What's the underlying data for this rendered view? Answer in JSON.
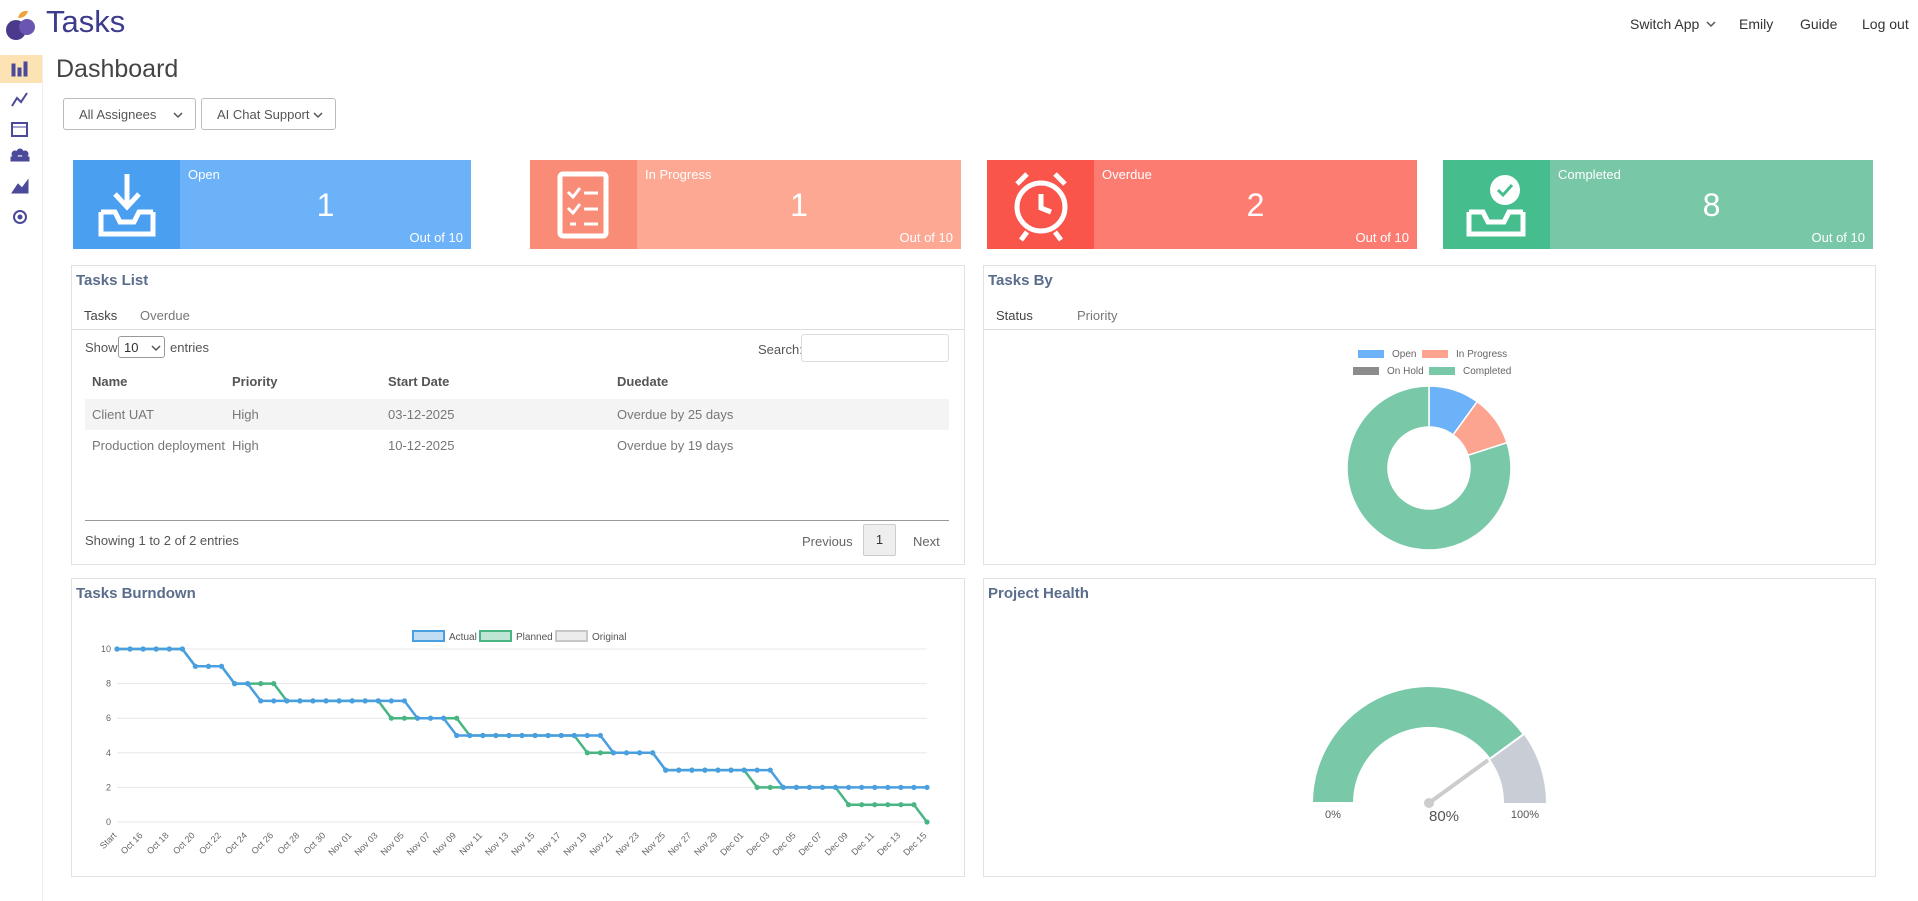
{
  "header": {
    "app_title": "Tasks",
    "nav": [
      "Switch App",
      "Emily",
      "Guide",
      "Log out"
    ]
  },
  "page_title": "Dashboard",
  "filters": [
    "All Assignees",
    "AI Chat Support"
  ],
  "cards": [
    {
      "label": "Open",
      "value": 1,
      "footer": "Out of 10"
    },
    {
      "label": "In Progress",
      "value": 1,
      "footer": "Out of 10"
    },
    {
      "label": "Overdue",
      "value": 2,
      "footer": "Out of 10"
    },
    {
      "label": "Completed",
      "value": 8,
      "footer": "Out of 10"
    }
  ],
  "tasks_list": {
    "title": "Tasks List",
    "tabs": [
      "Tasks",
      "Overdue"
    ],
    "show": "Show",
    "page_size": 10,
    "entries": "entries",
    "search": "Search:",
    "columns": [
      "Name",
      "Priority",
      "Start Date",
      "Duedate"
    ],
    "rows": [
      [
        "Client UAT",
        "High",
        "03-12-2025",
        "Overdue by 25 days"
      ],
      [
        "Production deployment",
        "High",
        "10-12-2025",
        "Overdue by 19 days"
      ]
    ],
    "info": "Showing 1 to 2 of 2 entries",
    "pagination": [
      "Previous",
      "1",
      "Next"
    ]
  },
  "tasks_by": {
    "title": "Tasks By",
    "tabs": [
      "Status",
      "Priority"
    ]
  },
  "burndown": {
    "title": "Tasks Burndown"
  },
  "project_health": {
    "title": "Project Health"
  },
  "chart_data": [
    {
      "type": "doughnut",
      "categories": [
        "Open",
        "In Progress",
        "On Hold",
        "Completed"
      ],
      "values": [
        1,
        1,
        0,
        8
      ],
      "colors": [
        "#6cb2f8",
        "#fca48f",
        "#8c8c8c",
        "#79c9a9"
      ]
    },
    {
      "type": "line",
      "categories": [
        "Start",
        null,
        "Oct 16",
        null,
        "Oct 18",
        null,
        "Oct 20",
        null,
        "Oct 22",
        null,
        "Oct 24",
        null,
        "Oct 26",
        null,
        "Oct 28",
        null,
        "Oct 30",
        null,
        "Nov 01",
        null,
        "Nov 03",
        null,
        "Nov 05",
        null,
        "Nov 07",
        null,
        "Nov 09",
        null,
        "Nov 11",
        null,
        "Nov 13",
        null,
        "Nov 15",
        null,
        "Nov 17",
        null,
        "Nov 19",
        null,
        "Nov 21",
        null,
        "Nov 23",
        null,
        "Nov 25",
        null,
        "Nov 27",
        null,
        "Nov 29",
        null,
        "Dec 01",
        null,
        "Dec 03",
        null,
        "Dec 05",
        null,
        "Dec 07",
        null,
        "Dec 09",
        null,
        "Dec 11",
        null,
        "Dec 13",
        null,
        "Dec 15"
      ],
      "series": [
        {
          "name": "Actual",
          "color": "#4a9fe0",
          "values": [
            10,
            10,
            10,
            10,
            10,
            10,
            9,
            9,
            9,
            8,
            8,
            7,
            7,
            7,
            7,
            7,
            7,
            7,
            7,
            7,
            7,
            7,
            7,
            6,
            6,
            6,
            5,
            5,
            5,
            5,
            5,
            5,
            5,
            5,
            5,
            5,
            5,
            5,
            4,
            4,
            4,
            4,
            3,
            3,
            3,
            3,
            3,
            3,
            3,
            3,
            3,
            2,
            2,
            2,
            2,
            2,
            2,
            2,
            2,
            2,
            2,
            2,
            2
          ]
        },
        {
          "name": "Planned",
          "color": "#48b583",
          "values": [
            10,
            10,
            10,
            10,
            10,
            10,
            9,
            9,
            9,
            8,
            8,
            8,
            8,
            7,
            7,
            7,
            7,
            7,
            7,
            7,
            7,
            6,
            6,
            6,
            6,
            6,
            6,
            5,
            5,
            5,
            5,
            5,
            5,
            5,
            5,
            5,
            4,
            4,
            4,
            4,
            4,
            4,
            3,
            3,
            3,
            3,
            3,
            3,
            3,
            2,
            2,
            2,
            2,
            2,
            2,
            2,
            1,
            1,
            1,
            1,
            1,
            1,
            0
          ]
        },
        {
          "name": "Original",
          "color": "#c8c8c8",
          "values": [
            null,
            null,
            null,
            null,
            null,
            null,
            null,
            null,
            null,
            null,
            null,
            null,
            null,
            null,
            null,
            null,
            null,
            null,
            null,
            null,
            null,
            null,
            null,
            null,
            null,
            null,
            null,
            null,
            null,
            null,
            null,
            null,
            null,
            null,
            null,
            null,
            null,
            null,
            null,
            null,
            null,
            null,
            null,
            null,
            null,
            null,
            null,
            null,
            null,
            null,
            null,
            null,
            null,
            null,
            null,
            null,
            null,
            null,
            null,
            null,
            null,
            null,
            null
          ]
        }
      ],
      "ylim": [
        0,
        10
      ],
      "yticks": [
        0,
        2,
        4,
        6,
        8,
        10
      ],
      "grid": true
    },
    {
      "type": "gauge",
      "values": [
        80
      ],
      "value_labels": [
        "80%"
      ],
      "xlim": [
        0,
        100
      ],
      "xticks": [
        {
          "value": 0,
          "label": "0%"
        },
        {
          "value": 100,
          "label": "100%"
        }
      ],
      "colors": [
        "#79c9a9",
        "#c9ced6"
      ]
    }
  ]
}
